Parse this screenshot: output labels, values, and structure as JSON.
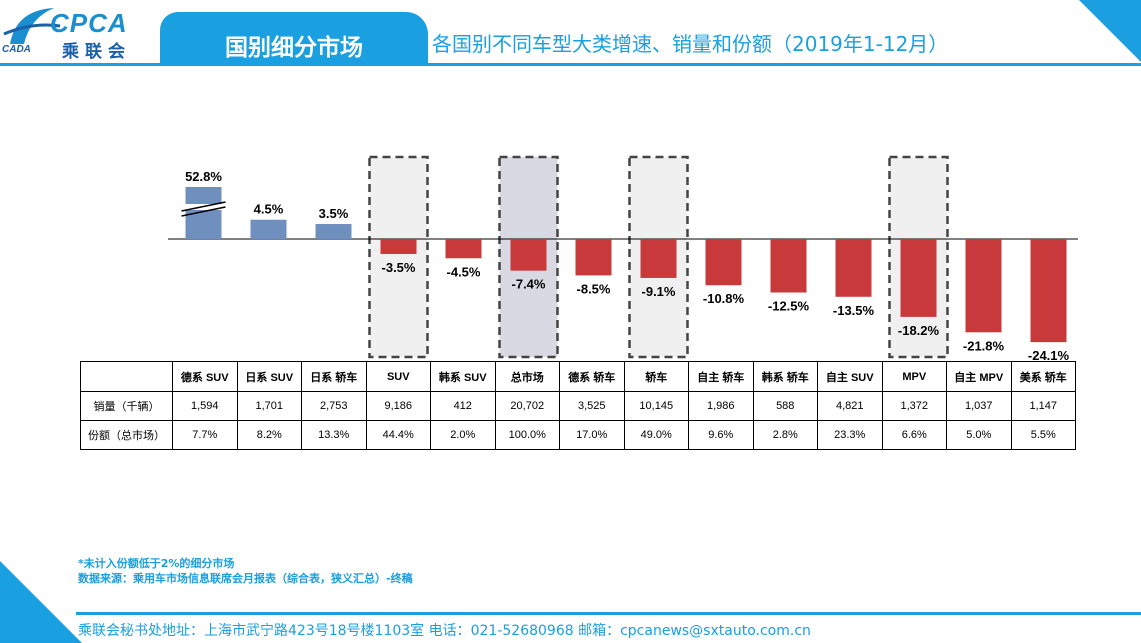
{
  "header": {
    "logo_text": "CPCA",
    "logo_cn": "乘联会",
    "logo_sub": "CADA",
    "title": "国别细分市场",
    "subtitle": "各国别不同车型大类增速、销量和份额（2019年1-12月）"
  },
  "colors": {
    "brand": "#1a9fe0",
    "positive_bar": "#6f8fbf",
    "negative_bar": "#c8393b",
    "highlight_fill": "#f0f0f0",
    "total_fill": "#d9d9e3"
  },
  "chart_data": {
    "type": "bar",
    "categories": [
      "德系 SUV",
      "日系 SUV",
      "日系 轿车",
      "SUV",
      "韩系 SUV",
      "总市场",
      "德系 轿车",
      "轿车",
      "自主 轿车",
      "韩系 轿车",
      "自主 SUV",
      "MPV",
      "自主 MPV",
      "美系 轿车"
    ],
    "values": [
      52.8,
      4.5,
      3.5,
      -3.5,
      -4.5,
      -7.4,
      -8.5,
      -9.1,
      -10.8,
      -12.5,
      -13.5,
      -18.2,
      -21.8,
      -24.1
    ],
    "value_labels": [
      "52.8%",
      "4.5%",
      "3.5%",
      "-3.5%",
      "-4.5%",
      "-7.4%",
      "-8.5%",
      "-9.1%",
      "-10.8%",
      "-12.5%",
      "-13.5%",
      "-18.2%",
      "-21.8%",
      "-24.1%"
    ],
    "broken_axis_bars": [
      "德系 SUV"
    ],
    "highlighted": [
      "SUV",
      "总市场",
      "轿车",
      "MPV"
    ],
    "unit": "%"
  },
  "table": {
    "rows": [
      {
        "label": "销量（千辆）",
        "values": [
          "1,594",
          "1,701",
          "2,753",
          "9,186",
          "412",
          "20,702",
          "3,525",
          "10,145",
          "1,986",
          "588",
          "4,821",
          "1,372",
          "1,037",
          "1,147"
        ]
      },
      {
        "label": "份额（总市场）",
        "values": [
          "7.7%",
          "8.2%",
          "13.3%",
          "44.4%",
          "2.0%",
          "100.0%",
          "17.0%",
          "49.0%",
          "9.6%",
          "2.8%",
          "23.3%",
          "6.6%",
          "5.0%",
          "5.5%"
        ]
      }
    ]
  },
  "notes": {
    "line1": "*未计入份额低于2%的细分市场",
    "line2": "数据来源：乘用车市场信息联席会月报表（综合表，狭义汇总）-终稿"
  },
  "footer": "乘联会秘书处地址：上海市武宁路423号18号楼1103室  电话：021-52680968   邮箱：cpcanews@sxtauto.com.cn"
}
